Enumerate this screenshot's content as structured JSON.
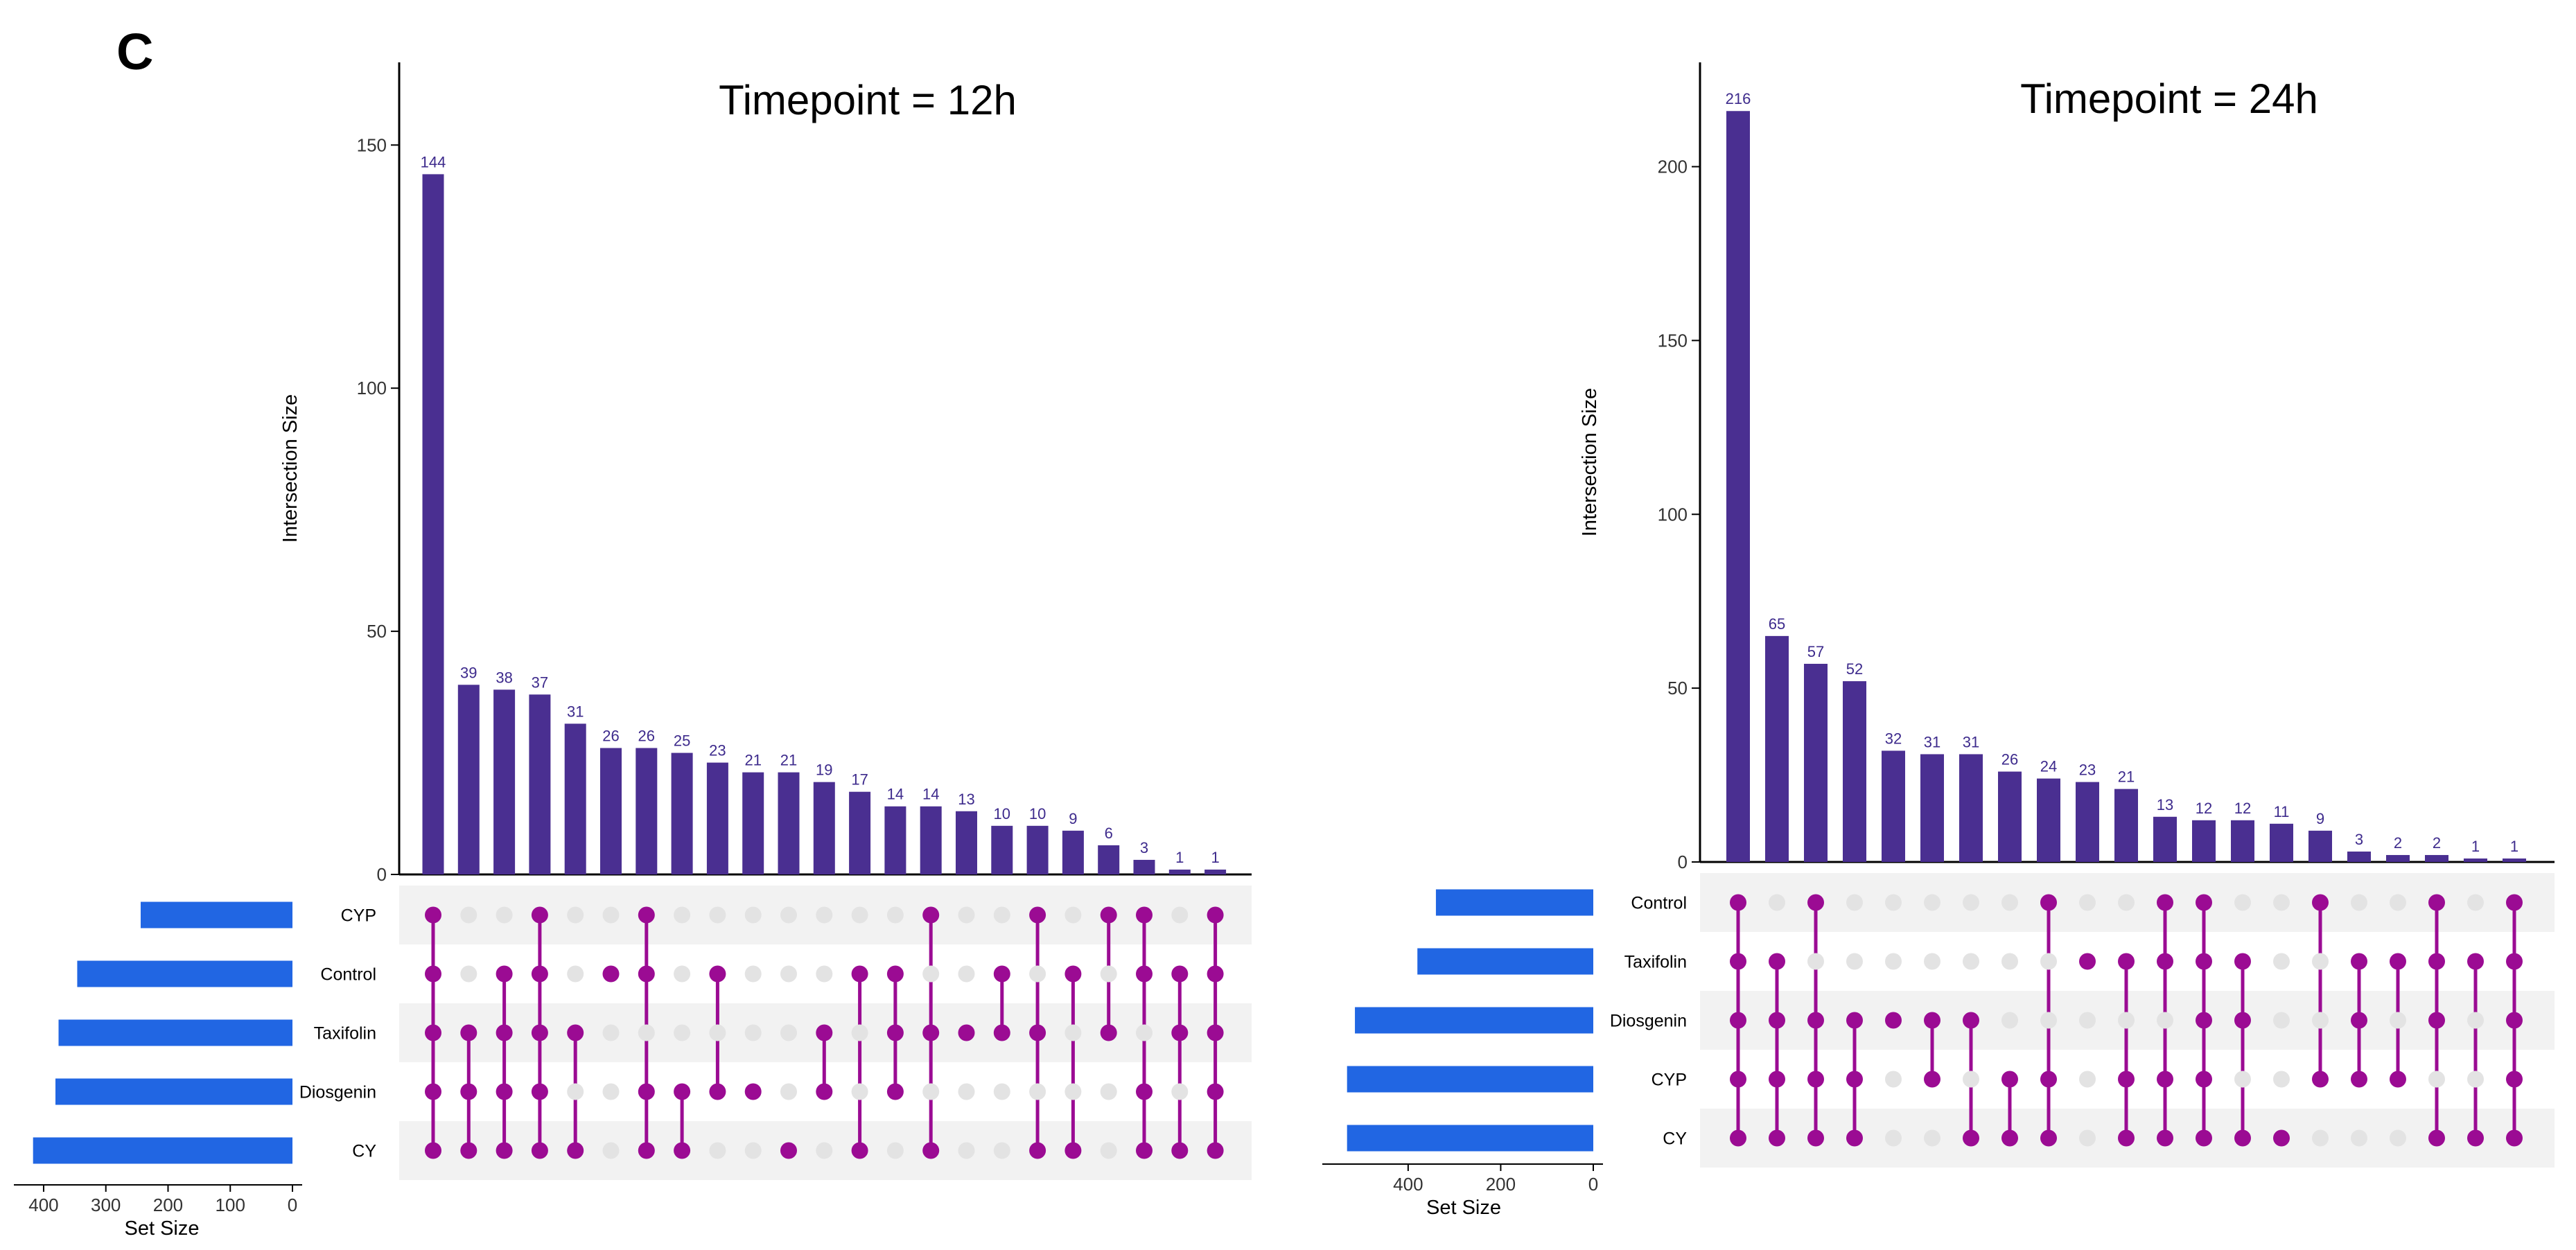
{
  "panel_label": "C",
  "colors": {
    "bar": "#4a2f91",
    "bar_label": "#3d2a8c",
    "set_bar": "#2166e3",
    "dot_on": "#9b0b93",
    "dot_off": "#e3e3e3",
    "stripe": "#f2f2f2",
    "axis": "#000000"
  },
  "chart_data": [
    {
      "type": "upset",
      "title": "Timepoint = 12h",
      "ylabel": "Intersection Size",
      "ylim": [
        0,
        167
      ],
      "yticks": [
        0,
        50,
        100,
        150
      ],
      "set_size_label": "Set Size",
      "set_size_ticks": [
        400,
        300,
        200,
        100,
        0
      ],
      "set_size_max": 420,
      "sets": [
        "CYP",
        "Control",
        "Taxifolin",
        "Diosgenin",
        "CY"
      ],
      "set_sizes": [
        244,
        346,
        376,
        381,
        417
      ],
      "intersection_sizes": [
        144,
        39,
        38,
        37,
        31,
        26,
        26,
        25,
        23,
        21,
        21,
        19,
        17,
        14,
        14,
        13,
        10,
        10,
        9,
        6,
        3,
        1,
        1
      ],
      "intersections": [
        [
          0,
          1,
          2,
          3,
          4
        ],
        [
          2,
          3,
          4
        ],
        [
          1,
          2,
          3,
          4
        ],
        [
          0,
          1,
          2,
          3,
          4
        ],
        [
          2,
          4
        ],
        [
          1
        ],
        [
          0,
          1,
          3,
          4
        ],
        [
          3,
          4
        ],
        [
          1,
          3
        ],
        [
          3
        ],
        [
          4
        ],
        [
          2,
          3
        ],
        [
          1,
          4
        ],
        [
          1,
          2,
          3
        ],
        [
          0,
          2,
          4
        ],
        [
          2
        ],
        [
          1,
          2
        ],
        [
          0,
          2,
          4
        ],
        [
          1,
          4
        ],
        [
          0,
          2
        ],
        [
          0,
          1,
          3,
          4
        ],
        [
          1,
          2,
          4
        ],
        [
          0,
          1,
          2,
          3,
          4
        ]
      ]
    },
    {
      "type": "upset",
      "title": "Timepoint = 24h",
      "ylabel": "Intersection Size",
      "ylim": [
        0,
        230
      ],
      "yticks": [
        0,
        50,
        100,
        150,
        200
      ],
      "set_size_label": "Set Size",
      "set_size_ticks": [
        400,
        200,
        0
      ],
      "set_size_max": 560,
      "sets": [
        "Control",
        "Taxifolin",
        "Diosgenin",
        "CYP",
        "CY"
      ],
      "set_sizes": [
        340,
        380,
        515,
        532,
        532
      ],
      "intersection_sizes": [
        216,
        65,
        57,
        52,
        32,
        31,
        31,
        26,
        24,
        23,
        21,
        13,
        12,
        12,
        11,
        9,
        3,
        2,
        2,
        1,
        1
      ],
      "intersections": [
        [
          0,
          1,
          2,
          3,
          4
        ],
        [
          1,
          2,
          3,
          4
        ],
        [
          0,
          2,
          3,
          4
        ],
        [
          2,
          3,
          4
        ],
        [
          2
        ],
        [
          2,
          3
        ],
        [
          2,
          4
        ],
        [
          3,
          4
        ],
        [
          0,
          3,
          4
        ],
        [
          1
        ],
        [
          1,
          3,
          4
        ],
        [
          0,
          1,
          3,
          4
        ],
        [
          0,
          1,
          2,
          3,
          4
        ],
        [
          1,
          2,
          4
        ],
        [
          4
        ],
        [
          0,
          3
        ],
        [
          1,
          2,
          3
        ],
        [
          1,
          3
        ],
        [
          0,
          1,
          2,
          4
        ],
        [
          1,
          4
        ],
        [
          0,
          1,
          2,
          3,
          4
        ]
      ]
    }
  ]
}
